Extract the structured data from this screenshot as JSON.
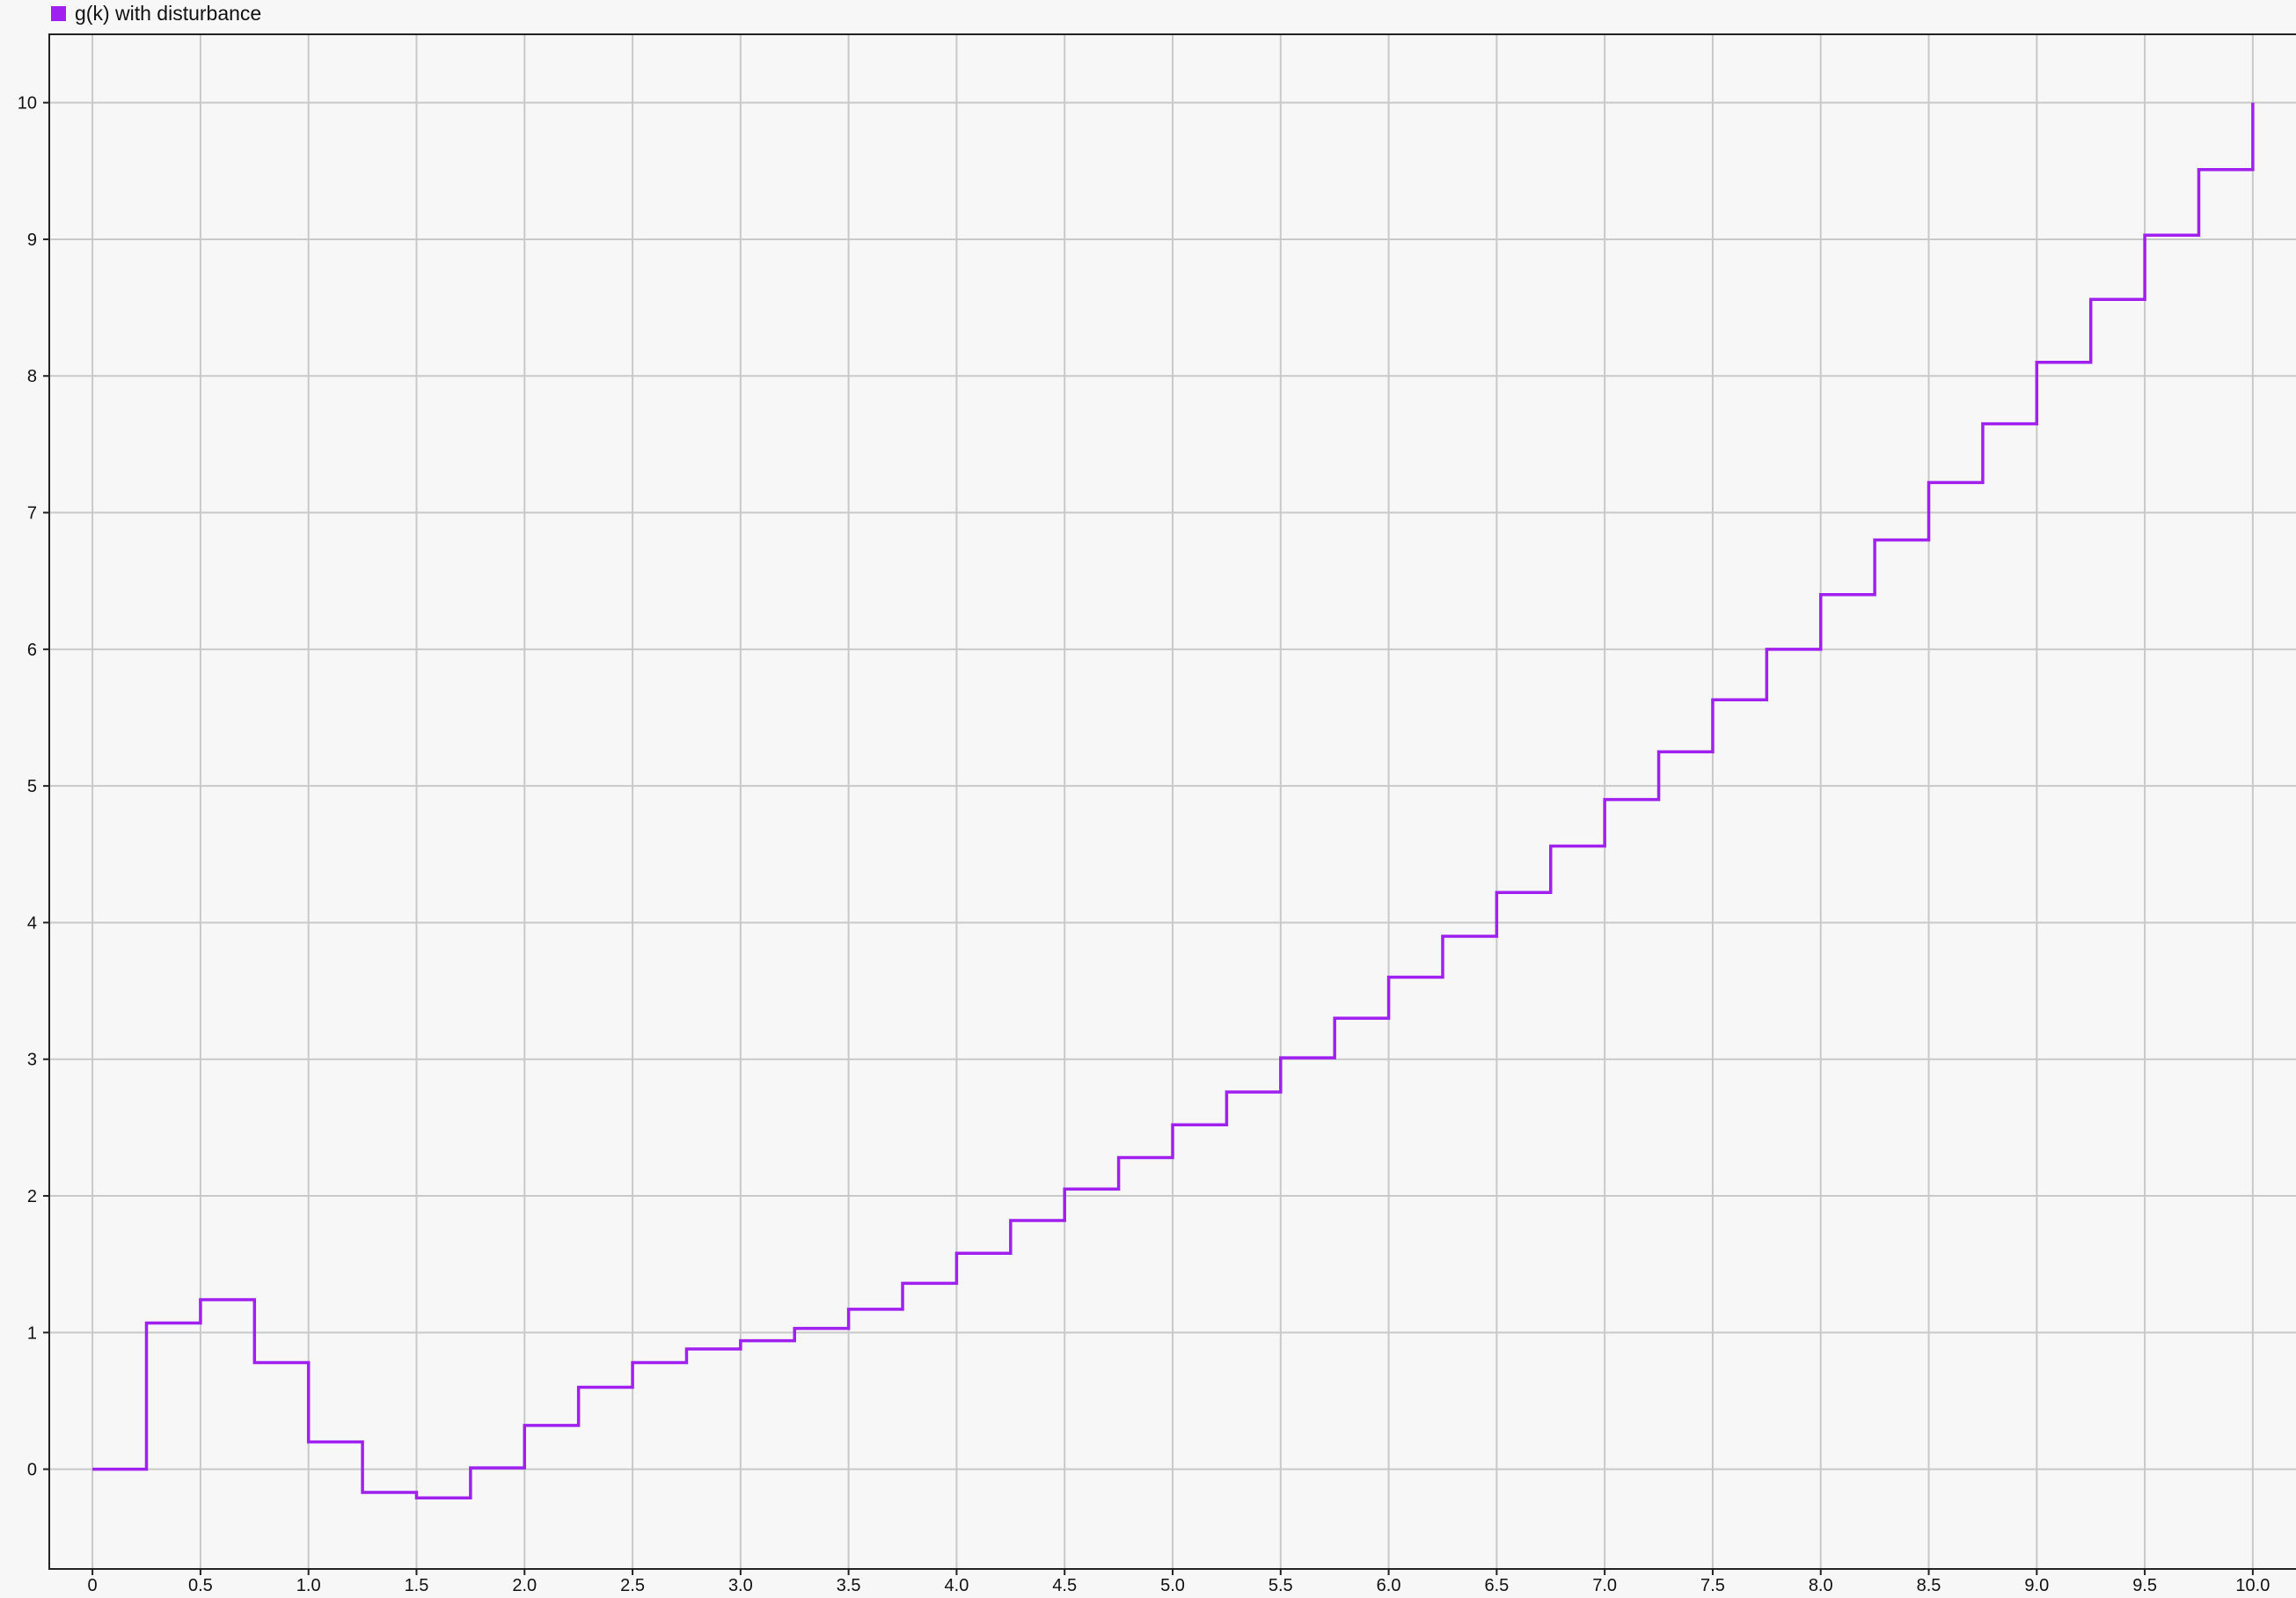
{
  "chart_data": {
    "type": "line",
    "step": true,
    "title": "",
    "xlabel": "",
    "ylabel": "",
    "xlim": [
      -0.2,
      10.2
    ],
    "ylim": [
      -0.73,
      10.5
    ],
    "grid": true,
    "legend_position": "top-left",
    "x_ticks": [
      "0",
      "0.5",
      "1.0",
      "1.5",
      "2.0",
      "2.5",
      "3.0",
      "3.5",
      "4.0",
      "4.5",
      "5.0",
      "5.5",
      "6.0",
      "6.5",
      "7.0",
      "7.5",
      "8.0",
      "8.5",
      "9.0",
      "9.5",
      "10.0"
    ],
    "y_ticks": [
      "0",
      "1",
      "2",
      "3",
      "4",
      "5",
      "6",
      "7",
      "8",
      "9",
      "10"
    ],
    "series": [
      {
        "name": "g(k) with disturbance",
        "color": "#a020f0",
        "x": [
          0,
          0.25,
          0.5,
          0.75,
          1.0,
          1.25,
          1.5,
          1.75,
          2.0,
          2.25,
          2.5,
          2.75,
          3.0,
          3.25,
          3.5,
          3.75,
          4.0,
          4.25,
          4.5,
          4.75,
          5.0,
          5.25,
          5.5,
          5.75,
          6.0,
          6.25,
          6.5,
          6.75,
          7.0,
          7.25,
          7.5,
          7.75,
          8.0,
          8.25,
          8.5,
          8.75,
          9.0,
          9.25,
          9.5,
          9.75,
          10.0
        ],
        "values": [
          0,
          1.07,
          1.24,
          0.78,
          0.2,
          -0.17,
          -0.21,
          0.01,
          0.32,
          0.6,
          0.78,
          0.88,
          0.94,
          1.03,
          1.17,
          1.36,
          1.58,
          1.82,
          2.05,
          2.28,
          2.52,
          2.76,
          3.01,
          3.3,
          3.6,
          3.9,
          4.22,
          4.56,
          4.9,
          5.25,
          5.63,
          6.0,
          6.4,
          6.8,
          7.22,
          7.65,
          8.1,
          8.56,
          9.03,
          9.51,
          10.0
        ]
      }
    ]
  }
}
